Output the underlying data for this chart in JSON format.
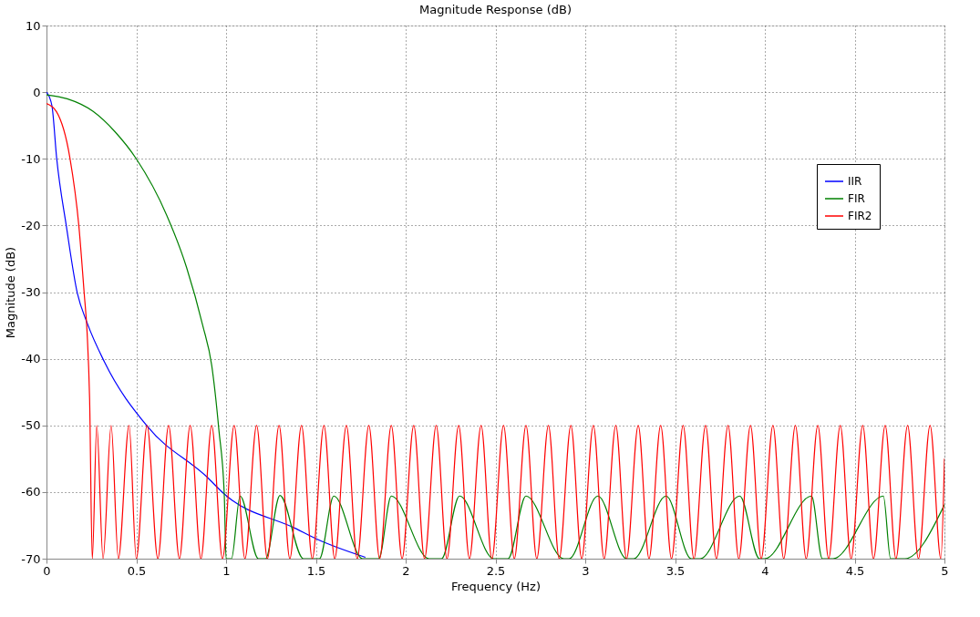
{
  "chart_data": {
    "type": "line",
    "title": "Magnitude Response (dB)",
    "xlabel": "Frequency (Hz)",
    "ylabel": "Magnitude (dB)",
    "xlim": [
      0,
      5
    ],
    "xticks": [
      0,
      0.5,
      1,
      1.5,
      2,
      2.5,
      3,
      3.5,
      4,
      4.5,
      5
    ],
    "ylim": [
      -70,
      10
    ],
    "yticks": [
      -70,
      -60,
      -50,
      -40,
      -30,
      -20,
      -10,
      0,
      10
    ],
    "grid": true,
    "legend": "right",
    "line_style": "solid",
    "marker": "none",
    "series": [
      {
        "name": "IIR",
        "color": "#0000ff",
        "x": [
          0,
          0.03,
          0.057,
          0.11,
          0.172,
          0.226,
          0.323,
          0.563,
          0.896,
          0.99,
          1.39,
          1.5,
          1.776
        ],
        "values": [
          0,
          -2,
          -10,
          -20,
          -30.2,
          -34.6,
          -40.5,
          -50.2,
          -57.8,
          -60.3,
          -65.5,
          -67,
          -69.8
        ]
      },
      {
        "name": "FIR",
        "color": "#008000",
        "x": [
          0,
          0.115,
          0.26,
          0.38,
          0.5,
          0.67,
          0.78,
          0.87,
          0.92,
          0.96,
          0.99,
          1.0,
          1.03,
          1.078,
          1.18,
          1.22,
          1.3,
          1.43,
          1.52,
          1.6,
          1.76,
          1.85,
          1.92,
          2.13,
          2.2,
          2.3,
          2.49,
          2.57,
          2.67,
          2.88,
          2.91,
          3.07,
          3.23,
          3.27,
          3.45,
          3.59,
          3.64,
          3.86,
          3.97,
          4.0,
          4.26,
          4.32,
          4.38,
          4.66,
          4.7,
          4.78,
          5.0
        ],
        "values": [
          -0.4,
          -1,
          -2.9,
          -5.9,
          -10,
          -18.5,
          -26.3,
          -35,
          -41,
          -50.7,
          -60.5,
          -70,
          -70,
          -60.6,
          -70,
          -70,
          -60.5,
          -70,
          -70,
          -60.6,
          -70,
          -70,
          -60.6,
          -70,
          -70,
          -60.6,
          -70,
          -70,
          -60.6,
          -70,
          -70,
          -60.6,
          -70,
          -70,
          -60.6,
          -70,
          -70,
          -60.6,
          -70,
          -70,
          -60.6,
          -70,
          -70,
          -60.6,
          -70,
          -70,
          -61.9
        ]
      },
      {
        "name": "FIR2",
        "color": "#ff0000",
        "x": [
          0,
          0.055,
          0.13,
          0.18,
          0.21,
          0.226,
          0.24,
          0.255,
          0.28,
          0.315,
          0.36,
          0.4,
          0.46,
          0.5,
          0.56,
          0.62,
          0.68,
          0.74,
          0.8,
          0.86,
          0.92,
          0.98,
          1.045,
          1.105,
          1.17,
          1.23,
          1.295,
          1.355,
          1.42,
          1.48,
          1.545,
          1.605,
          1.67,
          1.73,
          1.795,
          1.855,
          1.92,
          1.98,
          2.045,
          2.105,
          2.17,
          2.23,
          2.295,
          2.355,
          2.42,
          2.48,
          2.545,
          2.605,
          2.67,
          2.73,
          2.795,
          2.855,
          2.92,
          2.98,
          3.045,
          3.105,
          3.17,
          3.23,
          3.295,
          3.355,
          3.42,
          3.48,
          3.545,
          3.605,
          3.67,
          3.73,
          3.795,
          3.855,
          3.92,
          3.98,
          4.045,
          4.105,
          4.17,
          4.23,
          4.295,
          4.355,
          4.42,
          4.48,
          4.545,
          4.605,
          4.67,
          4.73,
          4.795,
          4.855,
          4.92,
          4.98,
          5.0
        ],
        "values": [
          -1.7,
          -2.9,
          -9.8,
          -20,
          -30.2,
          -36,
          -45.9,
          -70,
          -50,
          -70,
          -50,
          -70,
          -50,
          -70,
          -50,
          -70,
          -50,
          -70,
          -50,
          -70,
          -50,
          -70,
          -50,
          -70,
          -50,
          -70,
          -50,
          -70,
          -50,
          -70,
          -50,
          -70,
          -50,
          -70,
          -50,
          -70,
          -50,
          -70,
          -50,
          -70,
          -50,
          -70,
          -50,
          -70,
          -50,
          -70,
          -50,
          -70,
          -50,
          -70,
          -50,
          -70,
          -50,
          -70,
          -50,
          -70,
          -50,
          -70,
          -50,
          -70,
          -50,
          -70,
          -50,
          -70,
          -50,
          -70,
          -50,
          -70,
          -50,
          -70,
          -50,
          -70,
          -50,
          -70,
          -50,
          -70,
          -50,
          -70,
          -50,
          -70,
          -50,
          -70,
          -50,
          -70,
          -50,
          -70,
          -55
        ]
      }
    ]
  }
}
